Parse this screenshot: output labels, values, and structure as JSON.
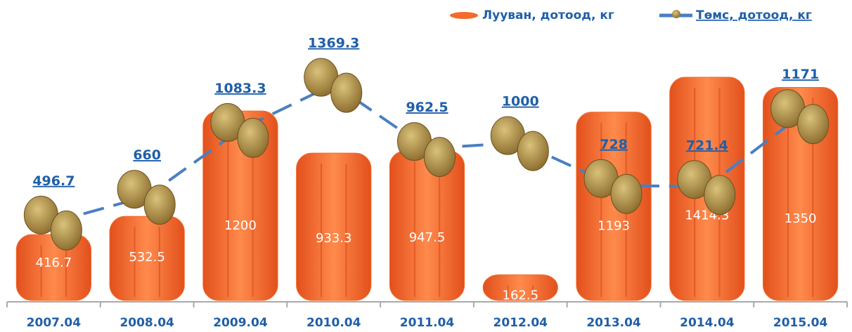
{
  "chart_data": {
    "type": "bar-line",
    "categories": [
      "2007.04",
      "2008.04",
      "2009.04",
      "2010.04",
      "2011.04",
      "2012.04",
      "2013.04",
      "2014.04",
      "2015.04"
    ],
    "series": [
      {
        "name": "Лууван, дотоод, кг",
        "color": "#f26b2a",
        "type": "bar",
        "values": [
          416.7,
          532.5,
          1200,
          933.3,
          947.5,
          162.5,
          1193,
          1414.3,
          1350
        ]
      },
      {
        "name": "Төмс, дотоод, кг",
        "color": "#4a7fc1",
        "type": "line",
        "values": [
          496.7,
          660,
          1083.3,
          1369.3,
          962.5,
          1000,
          728,
          721.4,
          1171
        ]
      }
    ]
  }
}
